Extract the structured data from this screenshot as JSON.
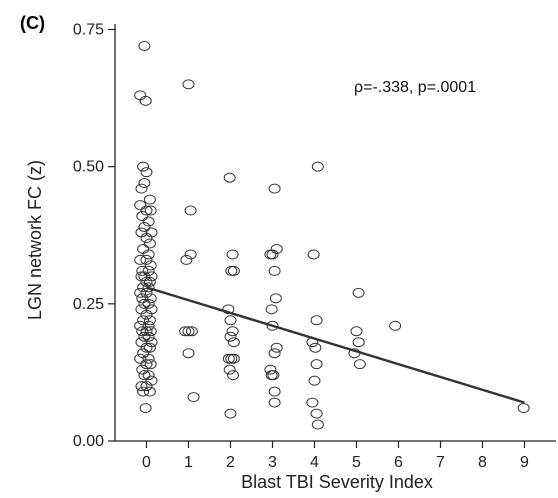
{
  "chart_data": {
    "type": "scatter",
    "panel_label": "(C)",
    "title": "",
    "xlabel": "Blast TBI Severity Index",
    "ylabel": "LGN network FC (z)",
    "xlim": [
      -0.75,
      9.75
    ],
    "ylim": [
      0.0,
      0.76
    ],
    "x_ticks": [
      0,
      1,
      2,
      3,
      4,
      5,
      6,
      7,
      8,
      9
    ],
    "y_ticks": [
      0.0,
      0.25,
      0.5,
      0.75
    ],
    "y_tick_labels": [
      "0.00",
      "0.25",
      "0.50",
      "0.75"
    ],
    "annotation": "ρ=-.338, p=.0001",
    "grid": false,
    "marker": "open-circle",
    "fit_line": {
      "x": [
        0,
        9
      ],
      "y": [
        0.28,
        0.07
      ]
    },
    "points": [
      [
        -0.05,
        0.72
      ],
      [
        -0.15,
        0.63
      ],
      [
        -0.02,
        0.62
      ],
      [
        -0.08,
        0.5
      ],
      [
        0.0,
        0.49
      ],
      [
        -0.12,
        0.46
      ],
      [
        -0.05,
        0.47
      ],
      [
        0.08,
        0.44
      ],
      [
        -0.15,
        0.43
      ],
      [
        0.0,
        0.42
      ],
      [
        0.1,
        0.42
      ],
      [
        -0.1,
        0.41
      ],
      [
        0.05,
        0.4
      ],
      [
        -0.05,
        0.39
      ],
      [
        0.12,
        0.38
      ],
      [
        -0.12,
        0.38
      ],
      [
        0.0,
        0.37
      ],
      [
        0.08,
        0.36
      ],
      [
        -0.08,
        0.35
      ],
      [
        0.05,
        0.34
      ],
      [
        -0.15,
        0.33
      ],
      [
        0.0,
        0.33
      ],
      [
        0.1,
        0.32
      ],
      [
        -0.1,
        0.31
      ],
      [
        0.05,
        0.31
      ],
      [
        -0.05,
        0.3
      ],
      [
        0.12,
        0.3
      ],
      [
        -0.12,
        0.3
      ],
      [
        0.0,
        0.29
      ],
      [
        0.08,
        0.29
      ],
      [
        -0.08,
        0.28
      ],
      [
        0.05,
        0.28
      ],
      [
        -0.15,
        0.27
      ],
      [
        0.0,
        0.27
      ],
      [
        0.1,
        0.26
      ],
      [
        -0.1,
        0.26
      ],
      [
        0.05,
        0.25
      ],
      [
        -0.05,
        0.25
      ],
      [
        0.12,
        0.24
      ],
      [
        -0.12,
        0.24
      ],
      [
        0.0,
        0.23
      ],
      [
        0.08,
        0.22
      ],
      [
        -0.08,
        0.22
      ],
      [
        0.05,
        0.21
      ],
      [
        -0.15,
        0.21
      ],
      [
        0.0,
        0.2
      ],
      [
        0.1,
        0.2
      ],
      [
        -0.1,
        0.2
      ],
      [
        0.05,
        0.19
      ],
      [
        -0.05,
        0.19
      ],
      [
        0.12,
        0.18
      ],
      [
        -0.12,
        0.18
      ],
      [
        0.0,
        0.17
      ],
      [
        0.08,
        0.17
      ],
      [
        -0.08,
        0.16
      ],
      [
        0.05,
        0.15
      ],
      [
        -0.15,
        0.15
      ],
      [
        0.0,
        0.14
      ],
      [
        0.1,
        0.14
      ],
      [
        -0.1,
        0.13
      ],
      [
        0.05,
        0.12
      ],
      [
        -0.05,
        0.12
      ],
      [
        0.12,
        0.11
      ],
      [
        -0.12,
        0.1
      ],
      [
        0.0,
        0.1
      ],
      [
        0.08,
        0.09
      ],
      [
        -0.08,
        0.09
      ],
      [
        -0.02,
        0.06
      ],
      [
        1.0,
        0.65
      ],
      [
        1.05,
        0.42
      ],
      [
        1.05,
        0.34
      ],
      [
        0.95,
        0.33
      ],
      [
        0.92,
        0.2
      ],
      [
        1.0,
        0.2
      ],
      [
        1.08,
        0.2
      ],
      [
        1.0,
        0.16
      ],
      [
        1.12,
        0.08
      ],
      [
        1.98,
        0.48
      ],
      [
        2.05,
        0.34
      ],
      [
        2.02,
        0.31
      ],
      [
        2.08,
        0.31
      ],
      [
        1.95,
        0.24
      ],
      [
        2.0,
        0.22
      ],
      [
        2.05,
        0.2
      ],
      [
        2.0,
        0.19
      ],
      [
        2.08,
        0.18
      ],
      [
        1.96,
        0.15
      ],
      [
        2.02,
        0.15
      ],
      [
        2.08,
        0.15
      ],
      [
        1.98,
        0.13
      ],
      [
        2.06,
        0.12
      ],
      [
        2.0,
        0.05
      ],
      [
        3.05,
        0.46
      ],
      [
        3.1,
        0.35
      ],
      [
        2.95,
        0.34
      ],
      [
        3.0,
        0.34
      ],
      [
        3.05,
        0.31
      ],
      [
        3.08,
        0.26
      ],
      [
        2.98,
        0.24
      ],
      [
        3.0,
        0.21
      ],
      [
        3.1,
        0.17
      ],
      [
        3.05,
        0.16
      ],
      [
        2.95,
        0.13
      ],
      [
        3.02,
        0.12
      ],
      [
        2.98,
        0.12
      ],
      [
        3.05,
        0.09
      ],
      [
        3.05,
        0.07
      ],
      [
        4.08,
        0.5
      ],
      [
        3.98,
        0.34
      ],
      [
        4.05,
        0.22
      ],
      [
        3.95,
        0.18
      ],
      [
        4.02,
        0.17
      ],
      [
        4.05,
        0.14
      ],
      [
        4.0,
        0.11
      ],
      [
        3.95,
        0.07
      ],
      [
        4.05,
        0.05
      ],
      [
        4.08,
        0.03
      ],
      [
        5.05,
        0.27
      ],
      [
        5.0,
        0.2
      ],
      [
        5.05,
        0.18
      ],
      [
        4.95,
        0.16
      ],
      [
        5.08,
        0.14
      ],
      [
        5.92,
        0.21
      ],
      [
        8.98,
        0.06
      ]
    ]
  }
}
